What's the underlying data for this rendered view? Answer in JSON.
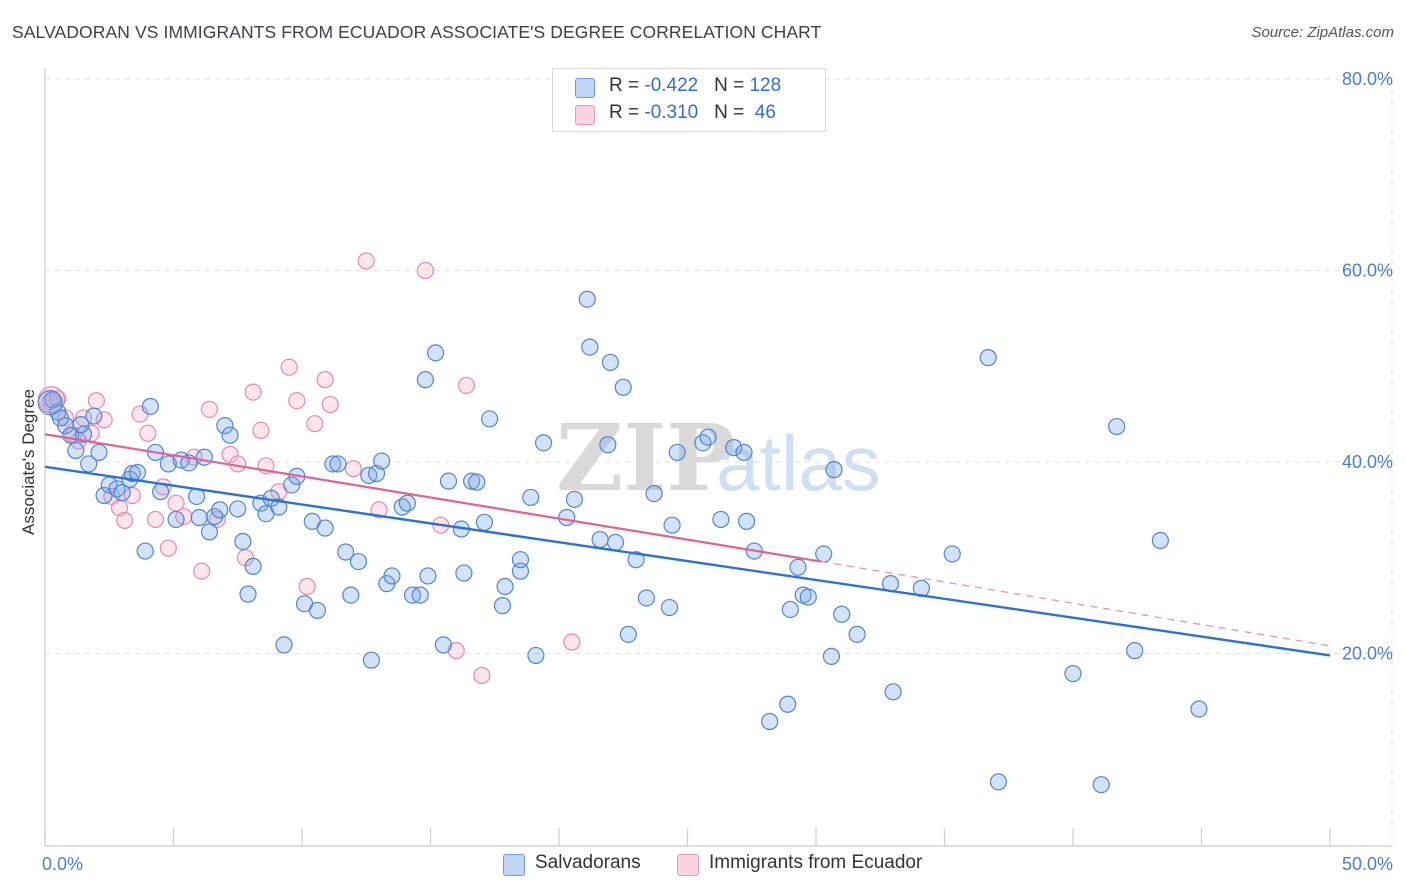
{
  "title": "SALVADORAN VS IMMIGRANTS FROM ECUADOR ASSOCIATE'S DEGREE CORRELATION CHART",
  "source": "Source: ZipAtlas.com",
  "watermark": {
    "zip": "ZIP",
    "atlas": "atlas"
  },
  "legend": {
    "rows": [
      {
        "r_label": "R = ",
        "r_value": "-0.422",
        "n_label": "N = ",
        "n_value": "128",
        "color": "#4d86d6"
      },
      {
        "r_label": "R = ",
        "r_value": "-0.310",
        "n_label": "N = ",
        "n_value": " 46",
        "color": "#e88aa9"
      }
    ]
  },
  "bottom_legend": [
    {
      "label": "Salvadorans",
      "color": "#4d86d6"
    },
    {
      "label": "Immigrants from Ecuador",
      "color": "#e88aa9"
    }
  ],
  "chart_data": {
    "type": "scatter",
    "title": "SALVADORAN VS IMMIGRANTS FROM ECUADOR ASSOCIATE'S DEGREE CORRELATION CHART",
    "xlabel": "",
    "ylabel": "Associate's Degree",
    "xlim": [
      0,
      50
    ],
    "ylim": [
      0,
      80
    ],
    "x_tick_labels": [
      "0.0%",
      "50.0%"
    ],
    "y_ticks": [
      20,
      40,
      60,
      80
    ],
    "y_tick_labels": [
      "20.0%",
      "40.0%",
      "60.0%",
      "80.0%"
    ],
    "grid": true,
    "legend_position": "top-center",
    "series": [
      {
        "name": "Salvadorans",
        "color": "#4d86d6",
        "trend": {
          "x0": 0,
          "y0": 39.5,
          "x1": 50,
          "y1": 19.8
        },
        "points": [
          [
            0.3,
            46.5
          ],
          [
            0.5,
            45.2
          ],
          [
            0.8,
            43.8
          ],
          [
            1.0,
            42.8
          ],
          [
            1.2,
            41.2
          ],
          [
            1.5,
            42.9
          ],
          [
            1.7,
            39.8
          ],
          [
            1.9,
            44.8
          ],
          [
            2.1,
            41.0
          ],
          [
            2.3,
            36.5
          ],
          [
            2.5,
            37.6
          ],
          [
            2.8,
            37.2
          ],
          [
            3.0,
            36.8
          ],
          [
            3.3,
            38.2
          ],
          [
            3.4,
            38.8
          ],
          [
            3.6,
            38.9
          ],
          [
            3.9,
            30.7
          ],
          [
            4.1,
            45.8
          ],
          [
            4.3,
            41.0
          ],
          [
            4.5,
            36.9
          ],
          [
            4.8,
            39.8
          ],
          [
            5.1,
            34.0
          ],
          [
            5.3,
            40.2
          ],
          [
            5.6,
            39.9
          ],
          [
            5.9,
            36.4
          ],
          [
            6.2,
            40.5
          ],
          [
            6.4,
            32.7
          ],
          [
            6.6,
            34.3
          ],
          [
            6.8,
            35.0
          ],
          [
            7.0,
            43.8
          ],
          [
            7.2,
            42.8
          ],
          [
            7.5,
            35.1
          ],
          [
            7.7,
            31.7
          ],
          [
            7.9,
            26.2
          ],
          [
            8.1,
            29.1
          ],
          [
            8.4,
            35.7
          ],
          [
            8.6,
            34.6
          ],
          [
            8.8,
            36.2
          ],
          [
            9.1,
            35.3
          ],
          [
            9.3,
            20.9
          ],
          [
            9.6,
            37.6
          ],
          [
            9.8,
            38.5
          ],
          [
            10.1,
            25.2
          ],
          [
            10.4,
            33.8
          ],
          [
            10.6,
            24.5
          ],
          [
            10.9,
            33.1
          ],
          [
            11.2,
            39.8
          ],
          [
            11.4,
            39.8
          ],
          [
            11.7,
            30.6
          ],
          [
            11.9,
            26.1
          ],
          [
            12.2,
            29.6
          ],
          [
            12.6,
            38.6
          ],
          [
            12.7,
            19.3
          ],
          [
            12.9,
            38.8
          ],
          [
            13.1,
            40.1
          ],
          [
            13.3,
            27.3
          ],
          [
            13.5,
            28.1
          ],
          [
            13.9,
            35.3
          ],
          [
            14.1,
            35.7
          ],
          [
            14.3,
            26.1
          ],
          [
            14.6,
            26.1
          ],
          [
            14.8,
            48.6
          ],
          [
            14.9,
            28.1
          ],
          [
            15.2,
            51.4
          ],
          [
            15.5,
            20.9
          ],
          [
            15.7,
            38.0
          ],
          [
            16.2,
            33.0
          ],
          [
            16.3,
            28.4
          ],
          [
            16.6,
            38.0
          ],
          [
            16.8,
            37.9
          ],
          [
            17.1,
            33.7
          ],
          [
            17.3,
            44.5
          ],
          [
            17.8,
            25.0
          ],
          [
            17.9,
            27.0
          ],
          [
            18.5,
            28.6
          ],
          [
            18.5,
            29.8
          ],
          [
            18.9,
            36.3
          ],
          [
            19.1,
            19.8
          ],
          [
            19.4,
            42.0
          ],
          [
            20.3,
            34.2
          ],
          [
            20.6,
            36.1
          ],
          [
            21.1,
            57.0
          ],
          [
            21.2,
            52.0
          ],
          [
            21.6,
            31.9
          ],
          [
            21.9,
            41.8
          ],
          [
            22.0,
            50.4
          ],
          [
            22.2,
            31.6
          ],
          [
            22.5,
            47.8
          ],
          [
            22.7,
            22.0
          ],
          [
            23.0,
            29.8
          ],
          [
            23.4,
            25.8
          ],
          [
            23.7,
            36.7
          ],
          [
            24.3,
            24.8
          ],
          [
            24.4,
            33.4
          ],
          [
            24.6,
            41.0
          ],
          [
            25.6,
            42.0
          ],
          [
            25.8,
            42.6
          ],
          [
            26.3,
            34.0
          ],
          [
            26.8,
            41.5
          ],
          [
            27.2,
            41.0
          ],
          [
            27.3,
            33.8
          ],
          [
            27.6,
            30.7
          ],
          [
            28.2,
            12.9
          ],
          [
            28.9,
            14.7
          ],
          [
            29.0,
            24.6
          ],
          [
            29.3,
            29.0
          ],
          [
            29.5,
            26.1
          ],
          [
            29.7,
            25.9
          ],
          [
            30.3,
            30.4
          ],
          [
            30.6,
            19.7
          ],
          [
            30.7,
            39.2
          ],
          [
            31.0,
            24.1
          ],
          [
            31.6,
            22.0
          ],
          [
            32.9,
            27.3
          ],
          [
            33.0,
            16.0
          ],
          [
            34.1,
            26.8
          ],
          [
            35.3,
            30.4
          ],
          [
            36.7,
            50.9
          ],
          [
            37.1,
            6.6
          ],
          [
            40.0,
            17.9
          ],
          [
            41.7,
            43.7
          ],
          [
            41.1,
            6.3
          ],
          [
            42.4,
            20.3
          ],
          [
            43.4,
            31.8
          ],
          [
            44.9,
            14.2
          ],
          [
            1.4,
            43.9
          ],
          [
            0.6,
            44.6
          ],
          [
            6.0,
            34.2
          ]
        ]
      },
      {
        "name": "Immigrants from Ecuador",
        "color": "#e88aa9",
        "trend": {
          "x0": 0,
          "y0": 42.9,
          "x1": 30.2,
          "y1": 29.6
        },
        "trend_dashed": {
          "x0": 30.2,
          "y0": 29.6,
          "x1": 50,
          "y1": 20.8
        },
        "points": [
          [
            0.2,
            46.3
          ],
          [
            0.5,
            46.6
          ],
          [
            0.8,
            44.6
          ],
          [
            1.1,
            42.8
          ],
          [
            1.3,
            42.2
          ],
          [
            1.5,
            44.6
          ],
          [
            1.8,
            43.0
          ],
          [
            2.0,
            46.4
          ],
          [
            2.3,
            44.4
          ],
          [
            2.6,
            36.4
          ],
          [
            2.9,
            35.2
          ],
          [
            3.1,
            33.9
          ],
          [
            3.4,
            36.5
          ],
          [
            3.7,
            45.0
          ],
          [
            4.0,
            43.0
          ],
          [
            4.3,
            34.0
          ],
          [
            4.6,
            37.4
          ],
          [
            4.8,
            31.0
          ],
          [
            5.1,
            35.7
          ],
          [
            5.4,
            34.3
          ],
          [
            5.8,
            40.5
          ],
          [
            6.1,
            28.6
          ],
          [
            6.4,
            45.5
          ],
          [
            6.7,
            34.0
          ],
          [
            7.2,
            40.8
          ],
          [
            7.5,
            39.8
          ],
          [
            7.8,
            30.0
          ],
          [
            8.1,
            47.3
          ],
          [
            8.4,
            43.3
          ],
          [
            8.6,
            39.6
          ],
          [
            9.1,
            36.9
          ],
          [
            9.5,
            49.9
          ],
          [
            9.8,
            46.4
          ],
          [
            10.2,
            27.0
          ],
          [
            10.5,
            44.0
          ],
          [
            10.9,
            48.6
          ],
          [
            11.1,
            46.0
          ],
          [
            12.0,
            39.3
          ],
          [
            12.5,
            61.0
          ],
          [
            13.0,
            35.0
          ],
          [
            14.8,
            60.0
          ],
          [
            15.4,
            33.4
          ],
          [
            16.0,
            20.3
          ],
          [
            16.4,
            48.0
          ],
          [
            17.0,
            17.7
          ],
          [
            20.5,
            21.2
          ]
        ]
      }
    ]
  }
}
